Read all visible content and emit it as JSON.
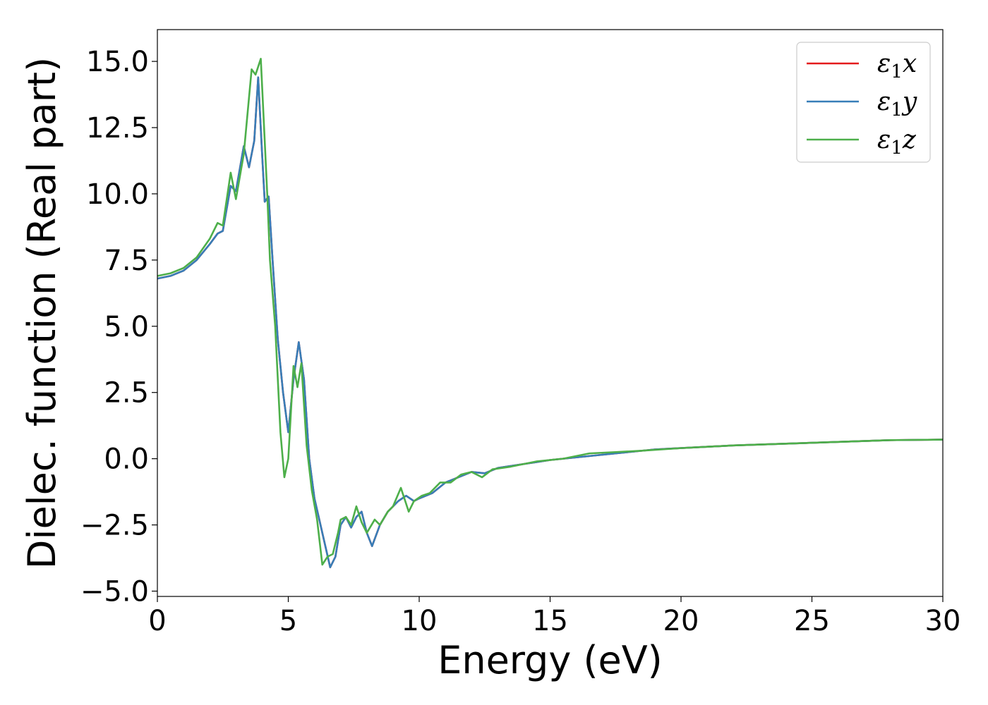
{
  "chart_data": {
    "type": "line",
    "xlabel": "Energy (eV)",
    "ylabel": "Dielec. function (Real part)",
    "xlim": [
      0,
      30
    ],
    "ylim": [
      -5.2,
      16.2
    ],
    "xticks": [
      0,
      5,
      10,
      15,
      20,
      25,
      30
    ],
    "xtick_labels": [
      "0",
      "5",
      "10",
      "15",
      "20",
      "25",
      "30"
    ],
    "yticks": [
      -5.0,
      -2.5,
      0.0,
      2.5,
      5.0,
      7.5,
      10.0,
      12.5,
      15.0
    ],
    "ytick_labels": [
      "−5.0",
      "−2.5",
      "0.0",
      "2.5",
      "5.0",
      "7.5",
      "10.0",
      "12.5",
      "15.0"
    ],
    "grid": false,
    "legend_position": "top-right",
    "series": [
      {
        "name": "ε₁x",
        "legend_base": "ε",
        "legend_sub": "1",
        "legend_suffix": "x",
        "color": "#e41a1c",
        "x": [
          0,
          0.5,
          1.0,
          1.5,
          2.0,
          2.3,
          2.5,
          2.8,
          3.0,
          3.3,
          3.5,
          3.7,
          3.85,
          4.0,
          4.1,
          4.25,
          4.4,
          4.6,
          4.8,
          5.0,
          5.2,
          5.4,
          5.6,
          5.8,
          6.0,
          6.3,
          6.6,
          6.8,
          7.0,
          7.2,
          7.4,
          7.6,
          7.8,
          8.0,
          8.2,
          8.5,
          8.8,
          9.2,
          9.5,
          9.8,
          10.0,
          10.5,
          11.0,
          11.5,
          12.0,
          12.5,
          13.0,
          14.0,
          15.0,
          16.0,
          17.0,
          18.0,
          19.0,
          20.0,
          22.0,
          25.0,
          28.0,
          30.0
        ],
        "y": [
          6.8,
          6.9,
          7.1,
          7.5,
          8.1,
          8.5,
          8.6,
          10.3,
          10.1,
          11.8,
          11.0,
          12.0,
          14.4,
          11.5,
          9.7,
          9.9,
          7.5,
          4.5,
          2.5,
          1.0,
          3.0,
          4.4,
          3.0,
          0.0,
          -1.5,
          -2.8,
          -4.1,
          -3.7,
          -2.5,
          -2.2,
          -2.6,
          -2.2,
          -2.0,
          -2.8,
          -3.3,
          -2.5,
          -2.0,
          -1.6,
          -1.4,
          -1.6,
          -1.5,
          -1.3,
          -0.9,
          -0.7,
          -0.5,
          -0.55,
          -0.35,
          -0.2,
          -0.05,
          0.05,
          0.15,
          0.25,
          0.35,
          0.4,
          0.5,
          0.6,
          0.7,
          0.72
        ]
      },
      {
        "name": "ε₁y",
        "legend_base": "ε",
        "legend_sub": "1",
        "legend_suffix": "y",
        "color": "#377eb8",
        "x": [
          0,
          0.5,
          1.0,
          1.5,
          2.0,
          2.3,
          2.5,
          2.8,
          3.0,
          3.3,
          3.5,
          3.7,
          3.85,
          4.0,
          4.1,
          4.25,
          4.4,
          4.6,
          4.8,
          5.0,
          5.2,
          5.4,
          5.6,
          5.8,
          6.0,
          6.3,
          6.6,
          6.8,
          7.0,
          7.2,
          7.4,
          7.6,
          7.8,
          8.0,
          8.2,
          8.5,
          8.8,
          9.2,
          9.5,
          9.8,
          10.0,
          10.5,
          11.0,
          11.5,
          12.0,
          12.5,
          13.0,
          14.0,
          15.0,
          16.0,
          17.0,
          18.0,
          19.0,
          20.0,
          22.0,
          25.0,
          28.0,
          30.0
        ],
        "y": [
          6.8,
          6.9,
          7.1,
          7.5,
          8.1,
          8.5,
          8.6,
          10.3,
          10.1,
          11.8,
          11.0,
          12.0,
          14.4,
          11.5,
          9.7,
          9.9,
          7.5,
          4.5,
          2.5,
          1.0,
          3.0,
          4.4,
          3.0,
          0.0,
          -1.5,
          -2.8,
          -4.1,
          -3.7,
          -2.5,
          -2.2,
          -2.6,
          -2.2,
          -2.0,
          -2.8,
          -3.3,
          -2.5,
          -2.0,
          -1.6,
          -1.4,
          -1.6,
          -1.5,
          -1.3,
          -0.9,
          -0.7,
          -0.5,
          -0.55,
          -0.35,
          -0.2,
          -0.05,
          0.05,
          0.15,
          0.25,
          0.35,
          0.4,
          0.5,
          0.6,
          0.7,
          0.72
        ]
      },
      {
        "name": "ε₁z",
        "legend_base": "ε",
        "legend_sub": "1",
        "legend_suffix": "z",
        "color": "#4daf4a",
        "x": [
          0,
          0.5,
          1.0,
          1.5,
          2.0,
          2.3,
          2.5,
          2.8,
          3.0,
          3.3,
          3.6,
          3.75,
          3.95,
          4.1,
          4.2,
          4.3,
          4.5,
          4.7,
          4.85,
          5.0,
          5.2,
          5.35,
          5.5,
          5.7,
          5.9,
          6.1,
          6.3,
          6.5,
          6.7,
          6.9,
          7.0,
          7.2,
          7.4,
          7.6,
          7.8,
          8.0,
          8.3,
          8.5,
          8.8,
          9.0,
          9.3,
          9.6,
          9.8,
          10.1,
          10.4,
          10.8,
          11.2,
          11.6,
          12.0,
          12.4,
          12.8,
          13.5,
          14.5,
          15.5,
          16.5,
          17.5,
          18.5,
          20.0,
          22.0,
          25.0,
          28.0,
          30.0
        ],
        "y": [
          6.9,
          7.0,
          7.2,
          7.6,
          8.3,
          8.9,
          8.8,
          10.8,
          9.8,
          11.5,
          14.7,
          14.5,
          15.1,
          12.0,
          9.9,
          7.5,
          5.0,
          1.0,
          -0.7,
          0.0,
          3.5,
          2.7,
          3.6,
          0.5,
          -1.2,
          -2.3,
          -4.0,
          -3.7,
          -3.6,
          -2.8,
          -2.3,
          -2.2,
          -2.5,
          -1.8,
          -2.4,
          -2.8,
          -2.3,
          -2.5,
          -2.0,
          -1.8,
          -1.1,
          -2.0,
          -1.6,
          -1.4,
          -1.3,
          -0.9,
          -0.9,
          -0.6,
          -0.5,
          -0.7,
          -0.4,
          -0.3,
          -0.1,
          0.0,
          0.2,
          0.25,
          0.3,
          0.4,
          0.5,
          0.6,
          0.7,
          0.72
        ]
      }
    ]
  }
}
